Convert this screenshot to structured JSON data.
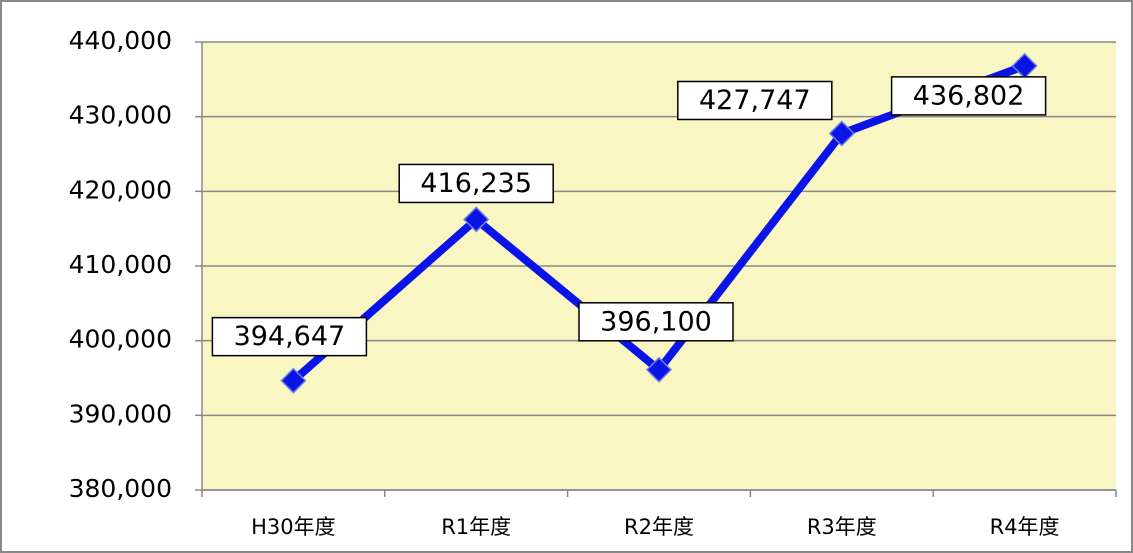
{
  "chart_data": {
    "type": "line",
    "categories": [
      "H30年度",
      "R1年度",
      "R2年度",
      "R3年度",
      "R4年度"
    ],
    "series": [
      {
        "name": null,
        "color": "#0a14e6",
        "values": [
          394647,
          416235,
          396100,
          427747,
          436802
        ],
        "value_labels": [
          "394,647",
          "416,235",
          "396,100",
          "427,747",
          "436,802"
        ]
      }
    ],
    "ylim": [
      380000,
      440000
    ],
    "yticks": [
      {
        "value": 380000,
        "label": "380,000"
      },
      {
        "value": 390000,
        "label": "390,000"
      },
      {
        "value": 400000,
        "label": "400,000"
      },
      {
        "value": 410000,
        "label": "410,000"
      },
      {
        "value": 420000,
        "label": "420,000"
      },
      {
        "value": 430000,
        "label": "430,000"
      },
      {
        "value": 440000,
        "label": "440,000"
      }
    ],
    "grid": true,
    "plot_background": "#faf6c4"
  }
}
